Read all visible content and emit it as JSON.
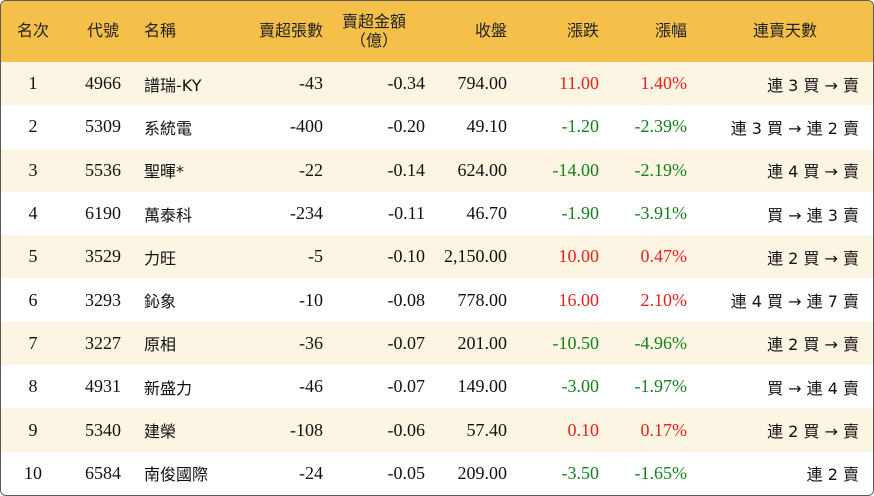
{
  "headers": {
    "rank": "名次",
    "code": "代號",
    "name": "名稱",
    "net_sell_lots": "賣超張數",
    "net_sell_amount_l1": "賣超金額",
    "net_sell_amount_l2": "（億）",
    "close": "收盤",
    "change": "漲跌",
    "pct_change": "漲幅",
    "consecutive_days": "連賣天數"
  },
  "rows": [
    {
      "rank": "1",
      "code": "4966",
      "name": "譜瑞-KY",
      "lots": "-43",
      "amount": "-0.34",
      "close": "794.00",
      "change": "11.00",
      "pct": "1.40%",
      "days": "連 3 買 → 賣",
      "trend": "up"
    },
    {
      "rank": "2",
      "code": "5309",
      "name": "系統電",
      "lots": "-400",
      "amount": "-0.20",
      "close": "49.10",
      "change": "-1.20",
      "pct": "-2.39%",
      "days": "連 3 買 → 連 2 賣",
      "trend": "down"
    },
    {
      "rank": "3",
      "code": "5536",
      "name": "聖暉*",
      "lots": "-22",
      "amount": "-0.14",
      "close": "624.00",
      "change": "-14.00",
      "pct": "-2.19%",
      "days": "連 4 買 → 賣",
      "trend": "down"
    },
    {
      "rank": "4",
      "code": "6190",
      "name": "萬泰科",
      "lots": "-234",
      "amount": "-0.11",
      "close": "46.70",
      "change": "-1.90",
      "pct": "-3.91%",
      "days": "買 → 連 3 賣",
      "trend": "down"
    },
    {
      "rank": "5",
      "code": "3529",
      "name": "力旺",
      "lots": "-5",
      "amount": "-0.10",
      "close": "2,150.00",
      "change": "10.00",
      "pct": "0.47%",
      "days": "連 2 買 → 賣",
      "trend": "up"
    },
    {
      "rank": "6",
      "code": "3293",
      "name": "鈊象",
      "lots": "-10",
      "amount": "-0.08",
      "close": "778.00",
      "change": "16.00",
      "pct": "2.10%",
      "days": "連 4 買 → 連 7 賣",
      "trend": "up"
    },
    {
      "rank": "7",
      "code": "3227",
      "name": "原相",
      "lots": "-36",
      "amount": "-0.07",
      "close": "201.00",
      "change": "-10.50",
      "pct": "-4.96%",
      "days": "連 2 買 → 賣",
      "trend": "down"
    },
    {
      "rank": "8",
      "code": "4931",
      "name": "新盛力",
      "lots": "-46",
      "amount": "-0.07",
      "close": "149.00",
      "change": "-3.00",
      "pct": "-1.97%",
      "days": "買 → 連 4 賣",
      "trend": "down"
    },
    {
      "rank": "9",
      "code": "5340",
      "name": "建榮",
      "lots": "-108",
      "amount": "-0.06",
      "close": "57.40",
      "change": "0.10",
      "pct": "0.17%",
      "days": "連 2 買 → 賣",
      "trend": "up"
    },
    {
      "rank": "10",
      "code": "6584",
      "name": "南俊國際",
      "lots": "-24",
      "amount": "-0.05",
      "close": "209.00",
      "change": "-3.50",
      "pct": "-1.65%",
      "days": "連 2 賣",
      "trend": "down"
    }
  ],
  "colors": {
    "header_bg": "#f4c04a",
    "odd_row_bg": "#fdf5e3",
    "even_row_bg": "#ffffff",
    "up": "#e8211b",
    "down": "#15811c"
  }
}
